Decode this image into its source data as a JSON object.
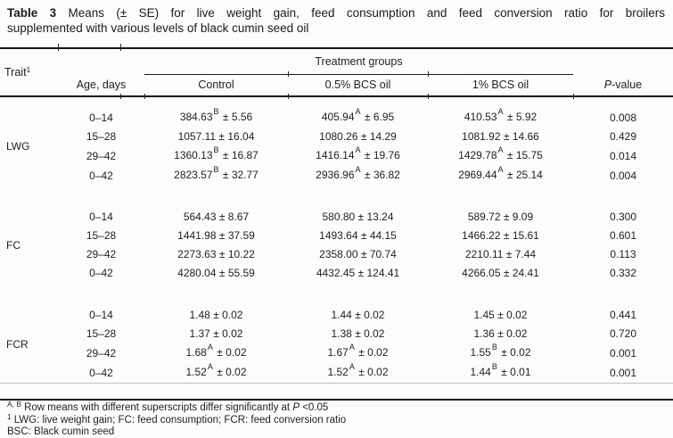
{
  "title": {
    "bold": "Table 3",
    "line1_rest": " Means (± SE) for live weight gain, feed consumption and feed conversion ratio for broilers",
    "line2": "supplemented with various levels of black cumin seed oil"
  },
  "symbols": {
    "pm": "±"
  },
  "header": {
    "trait_label": "Trait",
    "trait_sup": "1",
    "age_label": "Age, days",
    "span_label": "Treatment groups",
    "treatments": [
      "Control",
      "0.5% BCS oil",
      "1% BCS oil"
    ],
    "p_italic": "P",
    "p_rest": "-value"
  },
  "groups": [
    {
      "trait": "LWG",
      "rows": [
        {
          "age": "0–14",
          "cells": [
            {
              "mean": "384.63",
              "sup": "B",
              "se": "5.56"
            },
            {
              "mean": "405.94",
              "sup": "A",
              "se": "6.95"
            },
            {
              "mean": "410.53",
              "sup": "A",
              "se": "5.92"
            }
          ],
          "p": "0.008"
        },
        {
          "age": "15–28",
          "cells": [
            {
              "mean": "1057.11",
              "sup": "",
              "se": "16.04"
            },
            {
              "mean": "1080.26",
              "sup": "",
              "se": "14.29"
            },
            {
              "mean": "1081.92",
              "sup": "",
              "se": "14.66"
            }
          ],
          "p": "0.429"
        },
        {
          "age": "29–42",
          "cells": [
            {
              "mean": "1360.13",
              "sup": "B",
              "se": "16.87"
            },
            {
              "mean": "1416.14",
              "sup": "A",
              "se": "19.76"
            },
            {
              "mean": "1429.78",
              "sup": "A",
              "se": "15.75"
            }
          ],
          "p": "0.014"
        },
        {
          "age": "0–42",
          "cells": [
            {
              "mean": "2823.57",
              "sup": "B",
              "se": "32.77"
            },
            {
              "mean": "2936.96",
              "sup": "A",
              "se": "36.82"
            },
            {
              "mean": "2969.44",
              "sup": "A",
              "se": "25.14"
            }
          ],
          "p": "0.004"
        }
      ]
    },
    {
      "trait": "FC",
      "rows": [
        {
          "age": "0–14",
          "cells": [
            {
              "mean": "564.43",
              "sup": "",
              "se": "8.67"
            },
            {
              "mean": "580.80",
              "sup": "",
              "se": "13.24"
            },
            {
              "mean": "589.72",
              "sup": "",
              "se": "9.09"
            }
          ],
          "p": "0.300"
        },
        {
          "age": "15–28",
          "cells": [
            {
              "mean": "1441.98",
              "sup": "",
              "se": "37.59"
            },
            {
              "mean": "1493.64",
              "sup": "",
              "se": "44.15"
            },
            {
              "mean": "1466.22",
              "sup": "",
              "se": "15.61"
            }
          ],
          "p": "0.601"
        },
        {
          "age": "29–42",
          "cells": [
            {
              "mean": "2273.63",
              "sup": "",
              "se": "10.22"
            },
            {
              "mean": "2358.00",
              "sup": "",
              "se": "70.74"
            },
            {
              "mean": "2210.11",
              "sup": "",
              "se": "7.44"
            }
          ],
          "p": "0.113"
        },
        {
          "age": "0–42",
          "cells": [
            {
              "mean": "4280.04",
              "sup": "",
              "se": "55.59"
            },
            {
              "mean": "4432.45",
              "sup": "",
              "se": "124.41"
            },
            {
              "mean": "4266.05",
              "sup": "",
              "se": "24.41"
            }
          ],
          "p": "0.332"
        }
      ]
    },
    {
      "trait": "FCR",
      "rows": [
        {
          "age": "0–14",
          "cells": [
            {
              "mean": "1.48",
              "sup": "",
              "se": "0.02"
            },
            {
              "mean": "1.44",
              "sup": "",
              "se": "0.02"
            },
            {
              "mean": "1.45",
              "sup": "",
              "se": "0.02"
            }
          ],
          "p": "0.441"
        },
        {
          "age": "15–28",
          "cells": [
            {
              "mean": "1.37",
              "sup": "",
              "se": "0.02"
            },
            {
              "mean": "1.38",
              "sup": "",
              "se": "0.02"
            },
            {
              "mean": "1.36",
              "sup": "",
              "se": "0.02"
            }
          ],
          "p": "0.720"
        },
        {
          "age": "29–42",
          "cells": [
            {
              "mean": "1.68",
              "sup": "A",
              "se": "0.02"
            },
            {
              "mean": "1.67",
              "sup": "A",
              "se": "0.02"
            },
            {
              "mean": "1.55",
              "sup": "B",
              "se": "0.02"
            }
          ],
          "p": "0.001"
        },
        {
          "age": "0–42",
          "cells": [
            {
              "mean": "1.52",
              "sup": "A",
              "se": "0.02"
            },
            {
              "mean": "1.52",
              "sup": "A",
              "se": "0.02"
            },
            {
              "mean": "1.44",
              "sup": "B",
              "se": "0.01"
            }
          ],
          "p": "0.001"
        }
      ]
    }
  ],
  "footnotes": {
    "line1_sup": "A, B",
    "line1_pre": "Row means with different superscripts differ significantly at ",
    "line1_italic": "P",
    "line1_post": " <0.05",
    "line2_sup": "1",
    "line2_text": "LWG: live weight gain; FC: feed consumption; FCR: feed conversion ratio",
    "line3": "BSC: Black cumin seed"
  },
  "colors": {
    "text": "#1f1f1f",
    "rule": "#151515",
    "faint_rule": "#c2c2c2"
  }
}
